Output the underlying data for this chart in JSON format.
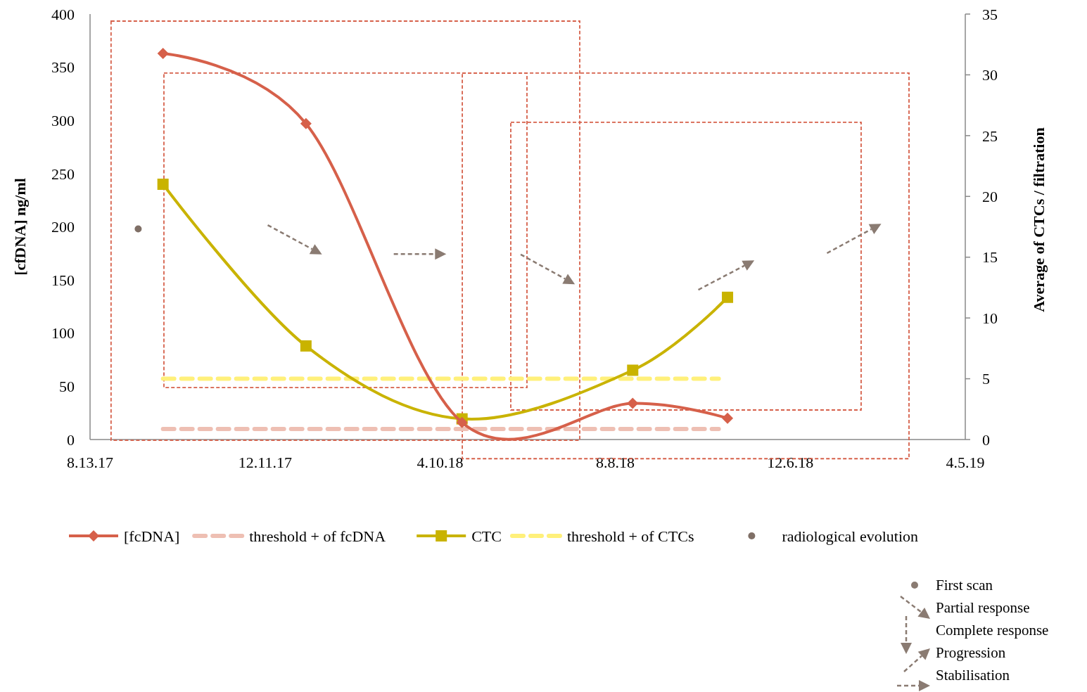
{
  "chart_data": {
    "type": "line",
    "ylabel": "[cfDNA] ng/ml",
    "y2label": "Average of CTCs / filtration",
    "xlim": [
      "2017-08-13",
      "2019-04-05"
    ],
    "xticks": [
      {
        "value": "2017-08-13",
        "label": "8.13.17"
      },
      {
        "value": "2017-12-11",
        "label": "12.11.17"
      },
      {
        "value": "2018-04-10",
        "label": "4.10.18"
      },
      {
        "value": "2018-08-08",
        "label": "8.8.18"
      },
      {
        "value": "2018-12-06",
        "label": "12.6.18"
      },
      {
        "value": "2019-04-05",
        "label": "4.5.19"
      }
    ],
    "ylim": [
      0,
      400
    ],
    "yticks": [
      0,
      50,
      100,
      150,
      200,
      250,
      300,
      350,
      400
    ],
    "y2lim": [
      0,
      35
    ],
    "y2ticks": [
      0,
      5,
      10,
      15,
      20,
      25,
      30,
      35
    ],
    "legend": "bottom",
    "grid": false,
    "series": [
      {
        "name": "threshold + of fcDNA",
        "color": "#eebfb3",
        "line_style": "dashed",
        "marker": "none",
        "x": [
          "2017-10-02",
          "2018-10-18"
        ],
        "values": [
          10,
          10
        ]
      },
      {
        "name": "threshold + of CTCs",
        "color": "#fff07a",
        "line_style": "dashed",
        "marker": "none",
        "axis": "y2",
        "x": [
          "2017-10-02",
          "2018-10-18"
        ],
        "values": [
          5,
          5
        ]
      },
      {
        "name": "CTC",
        "color": "#c9b300",
        "marker": "square",
        "axis": "y2",
        "x": [
          "2017-10-02",
          "2018-01-08",
          "2018-04-25",
          "2018-08-20",
          "2018-10-24"
        ],
        "values": [
          21,
          7.7,
          1.7,
          5.7,
          11.7
        ]
      },
      {
        "name": "[fcDNA]",
        "color": "#d6604a",
        "marker": "diamond",
        "x": [
          "2017-10-02",
          "2018-01-08",
          "2018-04-25",
          "2018-08-20",
          "2018-10-24"
        ],
        "values": [
          363,
          297,
          16,
          34,
          20
        ]
      },
      {
        "name": "radiological evolution",
        "type": "scatter",
        "color": "#7f6f66",
        "marker": "circle",
        "x": [
          "2017-09-15"
        ],
        "values": [
          198
        ]
      }
    ],
    "annotations": [
      "First scan",
      "Partial response",
      "Complete response",
      "Progression",
      "Stabilisation"
    ]
  }
}
